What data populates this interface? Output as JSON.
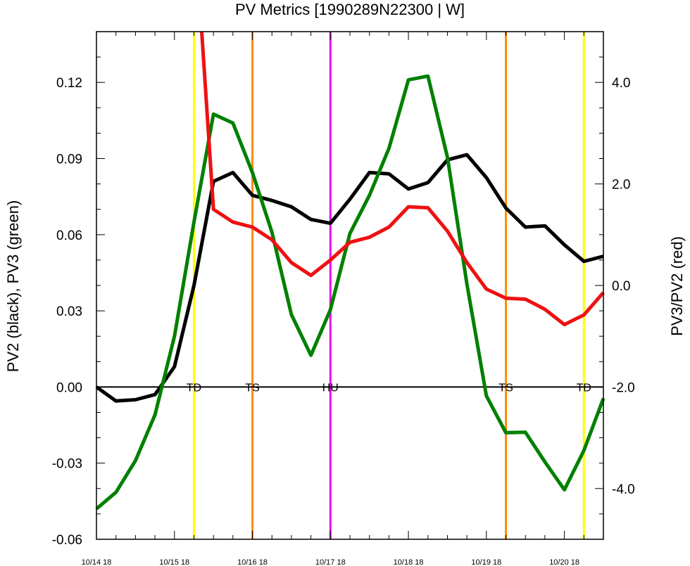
{
  "chart_data": {
    "type": "line",
    "title": "PV Metrics [1990289N22300 | W]",
    "ylabel_left": "PV2 (black), PV3 (green)",
    "ylabel_right": "PV3/PV2 (red)",
    "xlabel": "",
    "x_unit": "days from 10/14 18",
    "xlim": [
      0,
      6.5
    ],
    "ylim_left": [
      -0.06,
      0.14
    ],
    "ylim_right": [
      -5.0,
      5.0
    ],
    "x_ticks": [
      {
        "x": 0,
        "label": "10/14 18"
      },
      {
        "x": 1,
        "label": "10/15 18"
      },
      {
        "x": 2,
        "label": "10/16 18"
      },
      {
        "x": 3,
        "label": "10/17 18"
      },
      {
        "x": 4,
        "label": "10/18 18"
      },
      {
        "x": 5,
        "label": "10/19 18"
      },
      {
        "x": 6,
        "label": "10/20 18"
      }
    ],
    "y_left_ticks": [
      "-0.06",
      "-0.03",
      "0.00",
      "0.03",
      "0.06",
      "0.09",
      "0.12"
    ],
    "y_right_ticks": [
      "-4.0",
      "-2.0",
      "0.0",
      "2.0",
      "4.0"
    ],
    "zero_line": 0,
    "series": [
      {
        "axis": "left",
        "color": "#000000",
        "x": [
          0,
          0.25,
          0.5,
          0.75,
          1,
          1.25,
          1.5,
          1.75,
          2,
          2.25,
          2.5,
          2.75,
          3,
          3.25,
          3.5,
          3.75,
          4,
          4.25,
          4.5,
          4.75,
          5,
          5.25,
          5.5,
          5.75,
          6,
          6.25,
          6.5
        ],
        "values": [
          0.0,
          -0.0055,
          -0.005,
          -0.003,
          0.008,
          0.04,
          0.081,
          0.0845,
          0.0755,
          0.0735,
          0.071,
          0.066,
          0.0645,
          0.074,
          0.0845,
          0.084,
          0.078,
          0.0805,
          0.0895,
          0.0915,
          0.0825,
          0.0705,
          0.063,
          0.0635,
          0.056,
          0.0495,
          0.0515
        ]
      },
      {
        "axis": "left",
        "color": "#008000",
        "x": [
          0,
          0.25,
          0.5,
          0.75,
          1,
          1.25,
          1.5,
          1.75,
          2,
          2.25,
          2.5,
          2.75,
          3,
          3.25,
          3.5,
          3.75,
          4,
          4.25,
          4.5,
          4.75,
          5,
          5.25,
          5.5,
          5.75,
          6,
          6.25,
          6.5
        ],
        "values": [
          -0.048,
          -0.0415,
          -0.029,
          -0.011,
          0.02,
          0.065,
          0.1075,
          0.104,
          0.0845,
          0.061,
          0.0285,
          0.0125,
          0.0305,
          0.0605,
          0.0755,
          0.094,
          0.121,
          0.1225,
          0.0905,
          0.0405,
          -0.0035,
          -0.018,
          -0.0178,
          -0.0295,
          -0.0405,
          -0.025,
          -0.0045
        ]
      },
      {
        "axis": "right",
        "color": "#ee1111",
        "x": [
          1.35,
          1.5,
          1.75,
          2,
          2.25,
          2.5,
          2.75,
          3,
          3.25,
          3.5,
          3.75,
          4,
          4.25,
          4.5,
          4.75,
          5,
          5.25,
          5.5,
          5.75,
          6,
          6.25,
          6.5
        ],
        "values": [
          5.0,
          1.5,
          1.25,
          1.15,
          0.9,
          0.45,
          0.2,
          0.5,
          0.85,
          0.95,
          1.15,
          1.55,
          1.53,
          1.07,
          0.45,
          -0.07,
          -0.25,
          -0.27,
          -0.47,
          -0.77,
          -0.58,
          -0.14
        ]
      }
    ],
    "stage_markers": [
      {
        "x": 1.25,
        "label": "TD",
        "color": "#ffff00"
      },
      {
        "x": 2.0,
        "label": "TS",
        "color": "#ff8c00"
      },
      {
        "x": 3.0,
        "label": "HU",
        "color": "#ee00ee"
      },
      {
        "x": 5.25,
        "label": "TS",
        "color": "#ff8c00"
      },
      {
        "x": 6.25,
        "label": "TD",
        "color": "#ffff00"
      }
    ]
  }
}
